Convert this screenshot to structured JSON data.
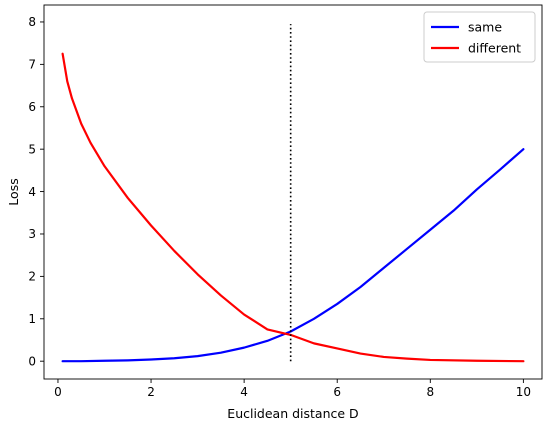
{
  "chart_data": {
    "type": "line",
    "xlabel": "Euclidean distance D",
    "ylabel": "Loss",
    "xlim": [
      -0.3,
      10.4
    ],
    "ylim": [
      -0.42,
      8.4
    ],
    "xticks": [
      0,
      2,
      4,
      6,
      8,
      10
    ],
    "yticks": [
      0,
      1,
      2,
      3,
      4,
      5,
      6,
      7,
      8
    ],
    "grid": false,
    "legend_position": "top-right",
    "series": [
      {
        "name": "same",
        "color": "#0000ff",
        "x": [
          0.1,
          0.5,
          1.0,
          1.5,
          2.0,
          2.5,
          3.0,
          3.5,
          4.0,
          4.5,
          5.0,
          5.5,
          6.0,
          6.5,
          7.0,
          7.5,
          8.0,
          8.5,
          9.0,
          9.5,
          10.0
        ],
        "y": [
          0.0,
          0.0,
          0.01,
          0.02,
          0.04,
          0.07,
          0.12,
          0.2,
          0.32,
          0.48,
          0.7,
          1.0,
          1.35,
          1.75,
          2.2,
          2.65,
          3.1,
          3.55,
          4.05,
          4.52,
          5.0
        ]
      },
      {
        "name": "different",
        "color": "#ff0000",
        "x": [
          0.1,
          0.2,
          0.3,
          0.5,
          0.7,
          1.0,
          1.5,
          2.0,
          2.5,
          3.0,
          3.5,
          4.0,
          4.5,
          5.0,
          5.5,
          6.0,
          6.5,
          7.0,
          7.5,
          8.0,
          9.0,
          10.0
        ],
        "y": [
          7.25,
          6.6,
          6.2,
          5.6,
          5.15,
          4.6,
          3.85,
          3.2,
          2.6,
          2.05,
          1.55,
          1.1,
          0.75,
          0.62,
          0.42,
          0.3,
          0.18,
          0.1,
          0.06,
          0.03,
          0.01,
          0.0
        ]
      }
    ],
    "vline": {
      "x": 5,
      "y": [
        0,
        7.95
      ],
      "style": "dotted",
      "color": "#000000"
    }
  }
}
